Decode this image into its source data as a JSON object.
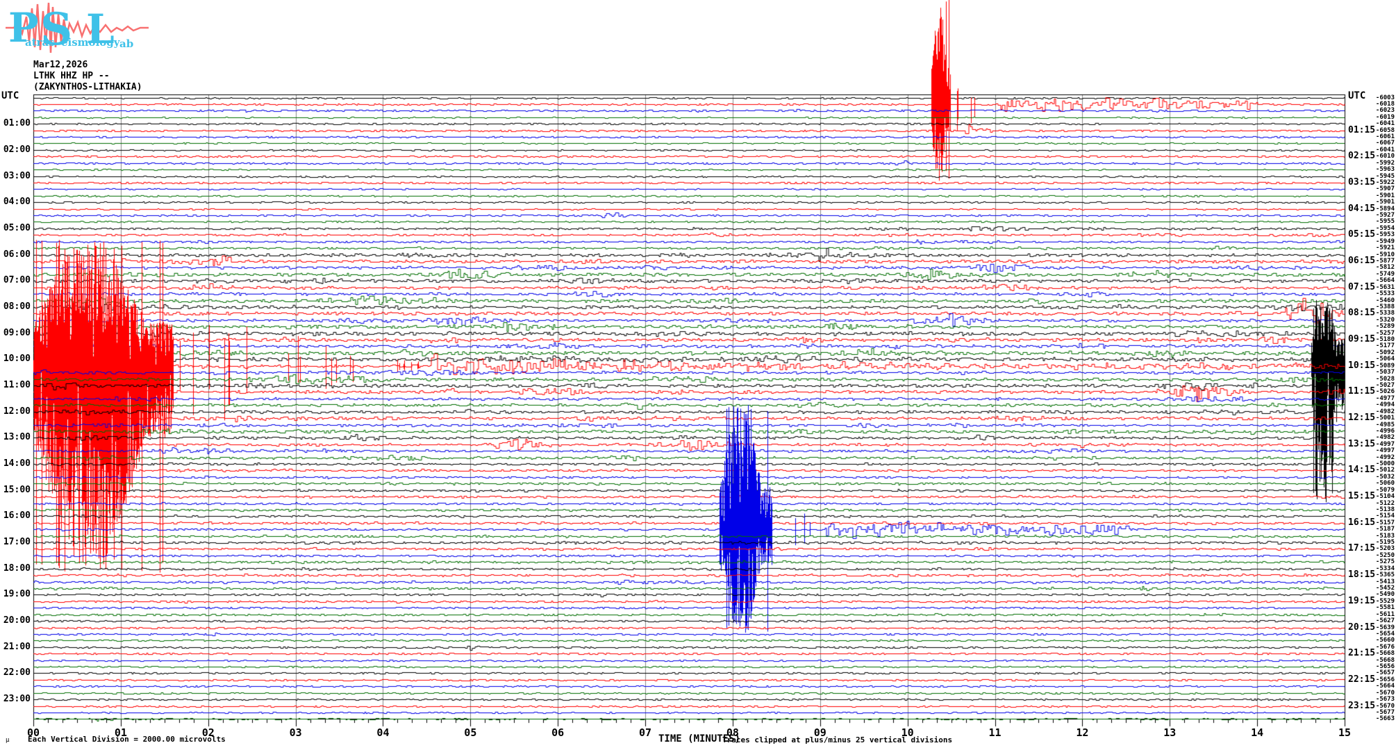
{
  "logo": {
    "letters": [
      "P",
      "S",
      "L"
    ],
    "words": [
      "atras",
      "eismology",
      "ab"
    ],
    "letter_color": "#3fc1e8",
    "wave_color": "#f87070"
  },
  "header": {
    "date": "Mar12,2026",
    "station": "LTHK HHZ HP --",
    "location": "(ZAKYNTHOS-LITHAKIA)"
  },
  "axes": {
    "utc_left": "UTC",
    "utc_right": "UTC",
    "x_label": "TIME (MINUTES)",
    "x_ticks": [
      "00",
      "01",
      "02",
      "03",
      "04",
      "05",
      "06",
      "07",
      "08",
      "09",
      "10",
      "11",
      "12",
      "13",
      "14",
      "15"
    ]
  },
  "footer": {
    "micro_mark": "μ",
    "scale_note": "Each Vertical Division = 2000.00 microvolts",
    "clip_note": "Traces clipped at plus/minus 25 vertical divisions"
  },
  "chart_data": {
    "type": "helicorder",
    "title": "LTHK HHZ HP -- (ZAKYNTHOS-LITHAKIA) Mar12,2026",
    "minutes_per_row": 15,
    "row_count": 96,
    "trace_color_cycle": [
      "#000000",
      "#ff0000",
      "#0000e8",
      "#006e00"
    ],
    "grid_color": "#888888",
    "left_hour_labels": [
      "01:00",
      "02:00",
      "03:00",
      "04:00",
      "05:00",
      "06:00",
      "07:00",
      "08:00",
      "09:00",
      "10:00",
      "11:00",
      "12:00",
      "13:00",
      "14:00",
      "15:00",
      "16:00",
      "17:00",
      "18:00",
      "19:00",
      "20:00",
      "21:00",
      "22:00",
      "23:00"
    ],
    "right_quarter_labels": [
      "01:15",
      "02:15",
      "03:15",
      "04:15",
      "05:15",
      "06:15",
      "07:15",
      "08:15",
      "09:15",
      "10:15",
      "11:15",
      "12:15",
      "13:15",
      "14:15",
      "15:15",
      "16:15",
      "17:15",
      "18:15",
      "19:15",
      "20:15",
      "21:15",
      "22:15",
      "23:15"
    ],
    "right_values": [
      -6003,
      -6018,
      -6023,
      -6019,
      -6041,
      -6058,
      -6061,
      -6067,
      -6041,
      -6010,
      -5992,
      -5963,
      -5945,
      -5922,
      -5907,
      -5901,
      -5901,
      -5894,
      -5927,
      -5955,
      -5954,
      -5953,
      -5949,
      -5921,
      -5910,
      -5877,
      -5812,
      -5749,
      -5664,
      -5631,
      -5533,
      -5460,
      -5388,
      -5338,
      -5320,
      -5289,
      -5257,
      -5180,
      -5177,
      -5092,
      -5064,
      -5089,
      -5037,
      -5028,
      -5027,
      -5026,
      -4977,
      -4994,
      -4982,
      -5001,
      -4985,
      -4996,
      -4982,
      -4997,
      -4997,
      -4992,
      -5000,
      -5012,
      -5032,
      -5060,
      -5079,
      -5104,
      -5122,
      -5138,
      -5154,
      -5157,
      -5187,
      -5183,
      -5195,
      -5203,
      -5250,
      -5275,
      -5334,
      -5365,
      -5413,
      -5452,
      -5490,
      -5529,
      -5581,
      -5611,
      -5627,
      -5639,
      -5654,
      -5660,
      -5676,
      -5668,
      -5668,
      -5656,
      -5657,
      -5656,
      -5664,
      -5670,
      -5673,
      -5670,
      -5677,
      -5663
    ],
    "noise_levels": [
      1.2,
      1.3,
      1.6,
      0.9,
      1.2,
      1.5,
      1.2,
      0.9,
      1.0,
      1.5,
      1.5,
      0.9,
      1.2,
      1.5,
      0.9,
      1.0,
      1.2,
      0.9,
      1.4,
      1.2,
      1.5,
      1.5,
      1.5,
      1.6,
      2.6,
      2.4,
      2.0,
      2.6,
      2.6,
      2.4,
      2.0,
      2.6,
      2.6,
      2.5,
      2.0,
      2.8,
      2.8,
      2.8,
      2.4,
      2.8,
      3.0,
      2.5,
      2.0,
      2.4,
      2.6,
      2.5,
      2.0,
      2.2,
      2.2,
      2.4,
      1.8,
      2.2,
      2.2,
      2.0,
      1.8,
      2.0,
      1.8,
      1.8,
      1.6,
      1.8,
      1.8,
      1.8,
      1.6,
      1.8,
      1.8,
      1.8,
      1.6,
      1.8,
      2.0,
      1.8,
      1.6,
      1.8,
      1.8,
      1.8,
      1.8,
      1.8,
      1.6,
      1.6,
      1.5,
      1.6,
      1.5,
      1.5,
      1.3,
      1.5,
      1.5,
      1.4,
      1.2,
      1.4,
      1.3,
      1.3,
      1.2,
      1.3,
      1.2,
      1.2,
      1.0,
      1.2
    ],
    "busy_rows": [
      20,
      55
    ],
    "events": [
      {
        "row": 1,
        "utc": "00:15",
        "kind": "mega",
        "start_min": 10.27,
        "dur_min": 0.22,
        "bleed": [
          0,
          265
        ],
        "bleed_lines": 2,
        "spike_tail_min": 0.5,
        "coda_amp": 13,
        "coda_end_min": 14.0
      },
      {
        "row": 5,
        "utc": "01:15",
        "kind": "burst",
        "start_min": 10.6,
        "dur_min": 0.45,
        "amp": 12
      },
      {
        "row": 10,
        "utc": "02:30",
        "kind": "burst",
        "start_min": 9.8,
        "dur_min": 0.6,
        "amp": 6
      },
      {
        "row": 18,
        "utc": "04:30",
        "kind": "burst",
        "start_min": 6.4,
        "dur_min": 0.8,
        "amp": 6
      },
      {
        "row": 21,
        "utc": "05:15",
        "kind": "burst",
        "start_min": 7.7,
        "dur_min": 0.35,
        "amp": 6
      },
      {
        "row": 22,
        "utc": "05:30",
        "kind": "burst",
        "start_min": 10.0,
        "dur_min": 0.8,
        "amp": 4
      },
      {
        "row": 33,
        "utc": "08:15",
        "kind": "burst",
        "start_min": 13.7,
        "dur_min": 0.6,
        "amp": 8
      },
      {
        "row": 37,
        "utc": "09:15",
        "kind": "burst",
        "start_min": 8.6,
        "dur_min": 1.3,
        "amp": 7
      },
      {
        "row": 37,
        "utc": "09:15",
        "kind": "burst",
        "start_min": 14.0,
        "dur_min": 0.7,
        "amp": 10
      },
      {
        "row": 38,
        "utc": "09:30",
        "kind": "burst",
        "start_min": 8.6,
        "dur_min": 0.9,
        "amp": 6
      },
      {
        "row": 40,
        "utc": "10:00",
        "kind": "burst",
        "start_min": 13.2,
        "dur_min": 0.9,
        "amp": 8
      },
      {
        "row": 40,
        "utc": "10:00",
        "kind": "mega",
        "start_min": 14.62,
        "dur_min": 0.38,
        "bleed": [
          432,
          730
        ],
        "bleed_lines": 6
      },
      {
        "row": 41,
        "utc": "10:15",
        "kind": "mega",
        "start_min": 0.0,
        "dur_min": 1.6,
        "bleed": [
          345,
          825
        ],
        "bleed_lines": 14,
        "spike_tail_min": 2.9,
        "coda_amp": 16,
        "coda_end_min": 15
      },
      {
        "row": 44,
        "utc": "11:00",
        "kind": "burst",
        "start_min": 0.05,
        "dur_min": 1.2,
        "amp": 8
      },
      {
        "row": 48,
        "utc": "12:00",
        "kind": "burst",
        "start_min": 4.9,
        "dur_min": 0.4,
        "amp": 6
      },
      {
        "row": 51,
        "utc": "12:45",
        "kind": "burst",
        "start_min": 7.6,
        "dur_min": 0.6,
        "amp": 5
      },
      {
        "row": 56,
        "utc": "14:00",
        "kind": "burst",
        "start_min": 5.3,
        "dur_min": 0.4,
        "amp": 5
      },
      {
        "row": 66,
        "utc": "16:30",
        "kind": "mega",
        "start_min": 7.85,
        "dur_min": 0.6,
        "bleed": [
          583,
          912
        ],
        "bleed_lines": 8,
        "spike_tail_min": 0.6,
        "coda_amp": 13,
        "coda_end_min": 12.5
      },
      {
        "row": 68,
        "utc": "17:00",
        "kind": "burst",
        "start_min": 7.8,
        "dur_min": 0.8,
        "amp": 5
      },
      {
        "row": 74,
        "utc": "18:30",
        "kind": "burst",
        "start_min": 6.5,
        "dur_min": 2.2,
        "amp": 5
      },
      {
        "row": 75,
        "utc": "18:45",
        "kind": "burst",
        "start_min": 12.6,
        "dur_min": 0.5,
        "amp": 6
      },
      {
        "row": 76,
        "utc": "19:00",
        "kind": "burst",
        "start_min": 6.3,
        "dur_min": 0.9,
        "amp": 4
      },
      {
        "row": 82,
        "utc": "20:30",
        "kind": "burst",
        "start_min": 1.9,
        "dur_min": 0.35,
        "amp": 5
      },
      {
        "row": 84,
        "utc": "21:00",
        "kind": "burst",
        "start_min": 4.95,
        "dur_min": 0.3,
        "amp": 6
      },
      {
        "row": 95,
        "utc": "23:45",
        "kind": "burst",
        "start_min": 0.7,
        "dur_min": 0.35,
        "amp": 7
      }
    ]
  }
}
